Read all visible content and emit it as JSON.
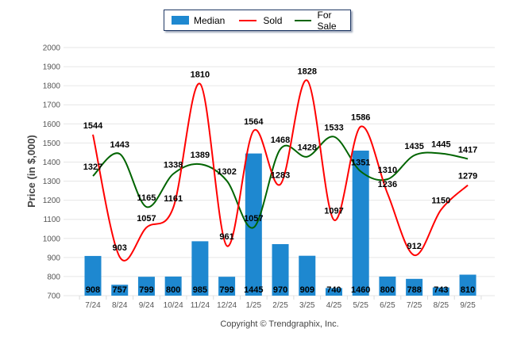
{
  "chart_data": {
    "type": "bar",
    "title": "",
    "xlabel": "",
    "ylabel": "Price (in $,000)",
    "ylim": [
      700,
      2000
    ],
    "yticks": [
      700,
      800,
      900,
      1000,
      1100,
      1200,
      1300,
      1400,
      1500,
      1600,
      1700,
      1800,
      1900,
      2000
    ],
    "grid": true,
    "legend_position": "top-center",
    "categories": [
      "7/24",
      "8/24",
      "9/24",
      "10/24",
      "11/24",
      "12/24",
      "1/25",
      "2/25",
      "3/25",
      "4/25",
      "5/25",
      "6/25",
      "7/25",
      "8/25",
      "9/25"
    ],
    "series": [
      {
        "name": "Median",
        "type": "bar",
        "color": "#1e88d0",
        "values": [
          908,
          757,
          799,
          800,
          985,
          799,
          1445,
          970,
          909,
          740,
          1460,
          800,
          788,
          743,
          810
        ]
      },
      {
        "name": "Sold",
        "type": "line",
        "color": "#ff0000",
        "values": [
          1544,
          903,
          1057,
          1161,
          1810,
          961,
          1564,
          1283,
          1828,
          1097,
          1586,
          1236,
          912,
          1150,
          1279
        ]
      },
      {
        "name": "For Sale",
        "type": "line",
        "color": "#006400",
        "values": [
          1327,
          1443,
          1165,
          1338,
          1389,
          1302,
          1057,
          1468,
          1428,
          1533,
          1351,
          1310,
          1435,
          1445,
          1417
        ]
      }
    ],
    "footer": "Copyright © Trendgraphix, Inc."
  },
  "legend": {
    "items": [
      {
        "label": "Median",
        "color": "#1e88d0",
        "kind": "bar"
      },
      {
        "label": "Sold",
        "color": "#ff0000",
        "kind": "line"
      },
      {
        "label": "For Sale",
        "color": "#006400",
        "kind": "line"
      }
    ]
  }
}
